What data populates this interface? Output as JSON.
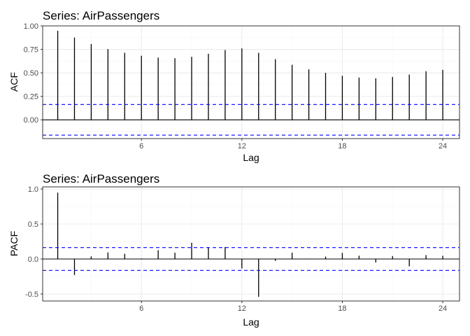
{
  "colors": {
    "ci_line": "#0000ff",
    "bar": "#000000",
    "grid_major": "#ebebeb",
    "grid_minor": "#f5f5f5",
    "panel_border": "#333333"
  },
  "chart_data": [
    {
      "type": "bar",
      "title": "Series: AirPassengers",
      "xlabel": "Lag",
      "ylabel": "ACF",
      "x_ticks": [
        6,
        12,
        18,
        24
      ],
      "y_ticks": [
        0.0,
        0.25,
        0.5,
        0.75,
        1.0
      ],
      "y_tick_labels": [
        "0.00",
        "0.25",
        "0.50",
        "0.75",
        "1.00"
      ],
      "xlim": [
        0.1,
        25.0
      ],
      "ylim": [
        -0.2,
        1.0
      ],
      "x": [
        1,
        2,
        3,
        4,
        5,
        6,
        7,
        8,
        9,
        10,
        11,
        12,
        13,
        14,
        15,
        16,
        17,
        18,
        19,
        20,
        21,
        22,
        23,
        24
      ],
      "values": [
        0.948,
        0.876,
        0.807,
        0.753,
        0.714,
        0.682,
        0.663,
        0.656,
        0.671,
        0.703,
        0.743,
        0.76,
        0.713,
        0.646,
        0.586,
        0.538,
        0.5,
        0.469,
        0.45,
        0.442,
        0.457,
        0.482,
        0.517,
        0.532
      ],
      "ci": [
        0.163,
        -0.163
      ],
      "grid": true
    },
    {
      "type": "bar",
      "title": "Series: AirPassengers",
      "xlabel": "Lag",
      "ylabel": "PACF",
      "x_ticks": [
        6,
        12,
        18,
        24
      ],
      "y_ticks": [
        -0.5,
        0.0,
        0.5,
        1.0
      ],
      "y_tick_labels": [
        "-0.5",
        "0.0",
        "0.5",
        "1.0"
      ],
      "xlim": [
        0.1,
        25.0
      ],
      "ylim": [
        -0.6,
        1.03
      ],
      "x": [
        1,
        2,
        3,
        4,
        5,
        6,
        7,
        8,
        9,
        10,
        11,
        12,
        13,
        14,
        15,
        16,
        17,
        18,
        19,
        20,
        21,
        22,
        23,
        24
      ],
      "values": [
        0.948,
        -0.229,
        0.038,
        0.094,
        0.074,
        0.008,
        0.126,
        0.09,
        0.232,
        0.166,
        0.171,
        -0.135,
        -0.54,
        -0.027,
        0.091,
        0.006,
        0.035,
        0.087,
        0.047,
        -0.05,
        0.042,
        -0.104,
        0.055,
        0.046
      ],
      "ci": [
        0.163,
        -0.163
      ],
      "grid": true
    }
  ]
}
